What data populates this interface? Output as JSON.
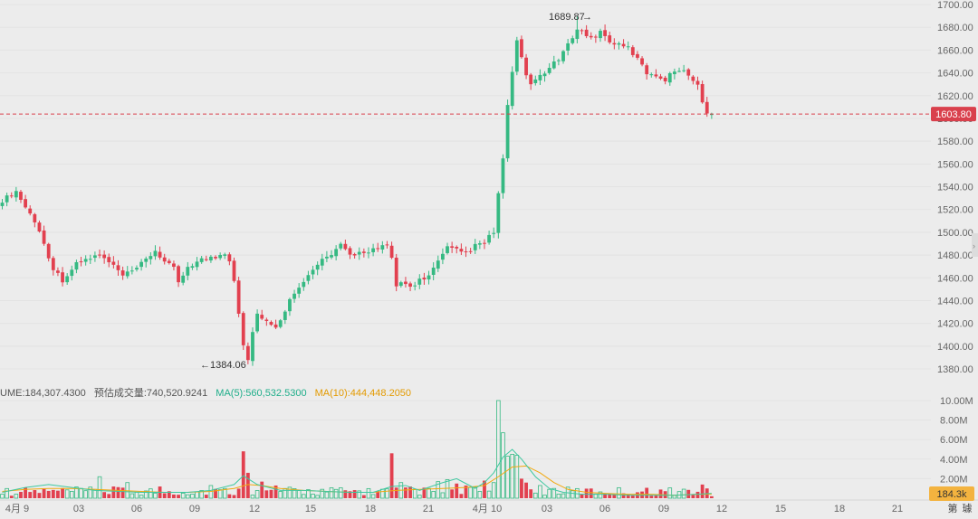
{
  "colors": {
    "up": "#35b982",
    "down": "#e2404f",
    "ma5": "#3ec8a0",
    "ma10": "#f2a80f",
    "price_tag_bg": "#d9404c",
    "vol_tag_bg": "#f3b33f",
    "grid": "#e3e3e3",
    "text": "#666666"
  },
  "price_axis": {
    "ticks": [
      "1700.00",
      "1680.00",
      "1660.00",
      "1640.00",
      "1620.00",
      "1600.00",
      "1580.00",
      "1560.00",
      "1540.00",
      "1520.00",
      "1500.00",
      "1480.00",
      "1460.00",
      "1440.00",
      "1420.00",
      "1400.00",
      "1380.00"
    ]
  },
  "current_price": "1603.80",
  "volume_axis": {
    "ticks": [
      "10.00M",
      "8.00M",
      "6.00M",
      "4.00M",
      "2.00M"
    ]
  },
  "current_volume": "184.3k",
  "volume_legend": {
    "volume": "UME:184,307.4300",
    "estimated": "预估成交量:740,520.9241",
    "ma5": "MA(5):560,532.5300",
    "ma10": "MA(10):444,448.2050"
  },
  "time_axis": [
    "4月 9",
    "03",
    "06",
    "09",
    "12",
    "15",
    "18",
    "21",
    "4月 10",
    "03",
    "06",
    "09",
    "12",
    "15",
    "18",
    "21",
    "第",
    "璩"
  ],
  "annotations": {
    "high": "1689.87",
    "low": "1384.06"
  },
  "chart_data": {
    "type": "candlestick",
    "y_range": [
      1370,
      1705
    ],
    "high": 1689.87,
    "low": 1384.06,
    "last": 1603.8,
    "close_path": [
      [
        0,
        1528
      ],
      [
        3,
        1536
      ],
      [
        5,
        1522
      ],
      [
        7,
        1510
      ],
      [
        9,
        1490
      ],
      [
        11,
        1468
      ],
      [
        13,
        1458
      ],
      [
        16,
        1472
      ],
      [
        18,
        1476
      ],
      [
        21,
        1480
      ],
      [
        24,
        1470
      ],
      [
        26,
        1462
      ],
      [
        28,
        1465
      ],
      [
        30,
        1472
      ],
      [
        33,
        1484
      ],
      [
        35,
        1474
      ],
      [
        37,
        1468
      ],
      [
        38,
        1456
      ],
      [
        40,
        1470
      ],
      [
        43,
        1476
      ],
      [
        46,
        1478
      ],
      [
        48,
        1482
      ],
      [
        49,
        1476
      ],
      [
        50,
        1458
      ],
      [
        52,
        1402
      ],
      [
        53,
        1388
      ],
      [
        54,
        1412
      ],
      [
        55,
        1430
      ],
      [
        56,
        1424
      ],
      [
        58,
        1418
      ],
      [
        59,
        1415
      ],
      [
        60,
        1424
      ],
      [
        61,
        1432
      ],
      [
        63,
        1448
      ],
      [
        65,
        1458
      ],
      [
        67,
        1466
      ],
      [
        69,
        1476
      ],
      [
        71,
        1480
      ],
      [
        73,
        1488
      ],
      [
        75,
        1480
      ],
      [
        77,
        1482
      ],
      [
        79,
        1484
      ],
      [
        81,
        1486
      ],
      [
        83,
        1488
      ],
      [
        84,
        1476
      ],
      [
        85,
        1452
      ],
      [
        86,
        1456
      ],
      [
        88,
        1452
      ],
      [
        90,
        1458
      ],
      [
        92,
        1462
      ],
      [
        94,
        1474
      ],
      [
        96,
        1486
      ],
      [
        98,
        1484
      ],
      [
        100,
        1482
      ],
      [
        102,
        1488
      ],
      [
        104,
        1490
      ],
      [
        105,
        1496
      ],
      [
        106,
        1500
      ],
      [
        107,
        1534
      ],
      [
        108,
        1564
      ],
      [
        109,
        1610
      ],
      [
        110,
        1642
      ],
      [
        111,
        1668
      ],
      [
        112,
        1652
      ],
      [
        113,
        1636
      ],
      [
        114,
        1630
      ],
      [
        116,
        1638
      ],
      [
        118,
        1644
      ],
      [
        120,
        1652
      ],
      [
        122,
        1664
      ],
      [
        124,
        1680
      ],
      [
        125,
        1676
      ],
      [
        127,
        1670
      ],
      [
        129,
        1676
      ],
      [
        131,
        1668
      ],
      [
        133,
        1664
      ],
      [
        135,
        1662
      ],
      [
        137,
        1652
      ],
      [
        139,
        1640
      ],
      [
        141,
        1638
      ],
      [
        143,
        1634
      ],
      [
        145,
        1642
      ],
      [
        147,
        1644
      ],
      [
        148,
        1638
      ],
      [
        150,
        1628
      ],
      [
        151,
        1616
      ],
      [
        152,
        1606
      ],
      [
        153,
        1604
      ]
    ],
    "volume_ma5_path": [
      [
        0,
        0.6
      ],
      [
        5,
        1.1
      ],
      [
        10,
        1.4
      ],
      [
        15,
        1.1
      ],
      [
        20,
        0.8
      ],
      [
        25,
        0.7
      ],
      [
        30,
        0.6
      ],
      [
        35,
        0.6
      ],
      [
        40,
        0.6
      ],
      [
        45,
        0.8
      ],
      [
        50,
        1.4
      ],
      [
        52,
        2.3
      ],
      [
        55,
        1.4
      ],
      [
        60,
        0.8
      ],
      [
        65,
        0.8
      ],
      [
        70,
        0.7
      ],
      [
        75,
        0.6
      ],
      [
        80,
        0.6
      ],
      [
        84,
        1.2
      ],
      [
        87,
        1.3
      ],
      [
        90,
        0.8
      ],
      [
        95,
        1.6
      ],
      [
        98,
        2.0
      ],
      [
        102,
        1.0
      ],
      [
        104,
        1.6
      ],
      [
        106,
        2.6
      ],
      [
        108,
        4.2
      ],
      [
        110,
        5.0
      ],
      [
        112,
        4.0
      ],
      [
        115,
        2.2
      ],
      [
        118,
        1.0
      ],
      [
        121,
        0.6
      ],
      [
        125,
        0.4
      ],
      [
        130,
        0.4
      ],
      [
        135,
        0.3
      ],
      [
        140,
        0.3
      ],
      [
        145,
        0.3
      ],
      [
        150,
        0.4
      ],
      [
        153,
        0.5
      ]
    ],
    "volume_ma10_path": [
      [
        0,
        0.7
      ],
      [
        5,
        0.9
      ],
      [
        10,
        1.0
      ],
      [
        15,
        1.0
      ],
      [
        20,
        0.9
      ],
      [
        25,
        0.8
      ],
      [
        30,
        0.7
      ],
      [
        35,
        0.6
      ],
      [
        40,
        0.6
      ],
      [
        45,
        0.7
      ],
      [
        50,
        1.0
      ],
      [
        53,
        1.4
      ],
      [
        56,
        1.3
      ],
      [
        60,
        1.0
      ],
      [
        65,
        0.8
      ],
      [
        70,
        0.7
      ],
      [
        75,
        0.6
      ],
      [
        80,
        0.6
      ],
      [
        85,
        0.8
      ],
      [
        90,
        0.9
      ],
      [
        95,
        1.0
      ],
      [
        100,
        1.1
      ],
      [
        104,
        1.3
      ],
      [
        107,
        2.2
      ],
      [
        110,
        3.2
      ],
      [
        113,
        3.3
      ],
      [
        116,
        2.6
      ],
      [
        119,
        1.6
      ],
      [
        122,
        0.9
      ],
      [
        126,
        0.6
      ],
      [
        130,
        0.5
      ],
      [
        135,
        0.4
      ],
      [
        140,
        0.4
      ],
      [
        145,
        0.3
      ],
      [
        150,
        0.4
      ],
      [
        153,
        0.4
      ]
    ],
    "volume_spikes": {
      "21": 2.2,
      "24": 1.2,
      "27": 1.6,
      "34": 1.2,
      "45": 1.3,
      "52": 4.8,
      "53": 2.6,
      "56": 1.7,
      "59": 1.3,
      "84": 4.6,
      "86": 1.6,
      "88": 1.2,
      "94": 1.7,
      "96": 1.9,
      "98": 1.5,
      "100": 1.3,
      "104": 1.8,
      "106": 1.6,
      "107": 10.0,
      "108": 6.7,
      "109": 4.3,
      "110": 4.5,
      "111": 4.4,
      "112": 2.0,
      "113": 1.6,
      "116": 1.3,
      "119": 1.0,
      "151": 1.4,
      "152": 1.0,
      "153": 0.2
    }
  }
}
